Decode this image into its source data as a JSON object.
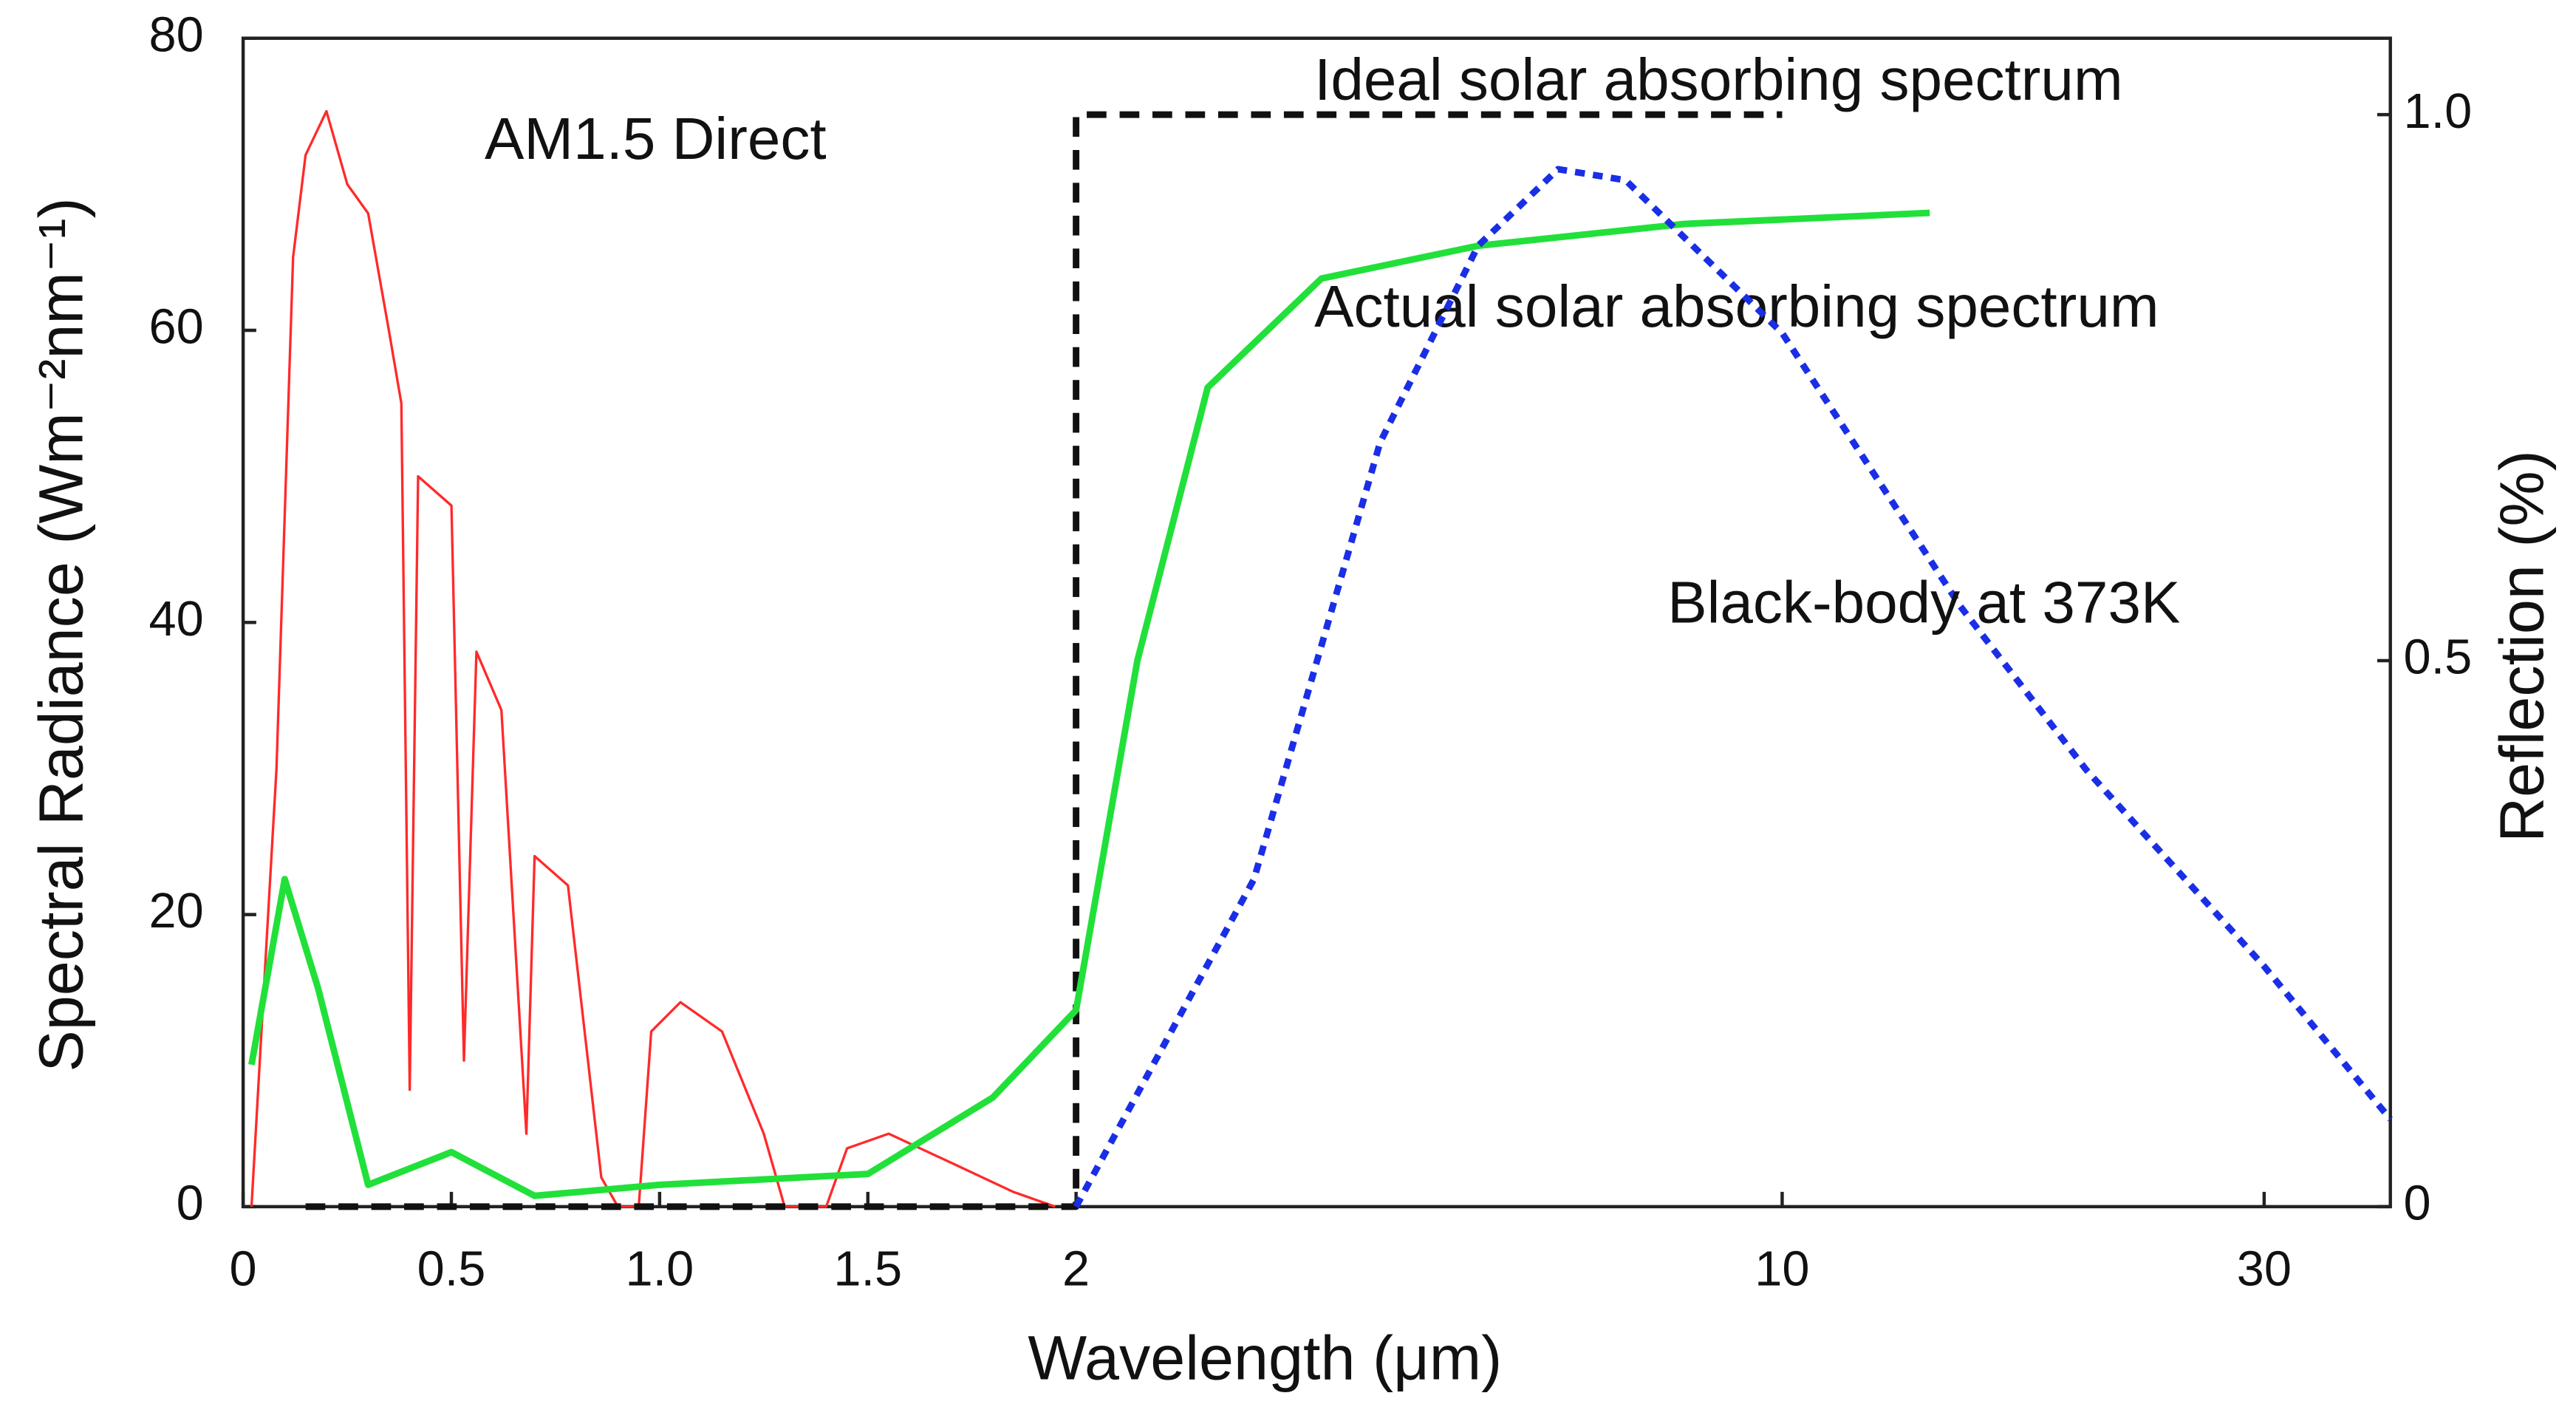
{
  "chart_data": {
    "type": "line",
    "xlabel": "Wavelength (μm)",
    "ylabel": "Spectral Radiance  (Wm⁻²nm⁻¹)",
    "y2label": "Reflection (%)",
    "xscale": "linear-then-log",
    "xbreak": 2,
    "xlim": [
      0,
      40
    ],
    "xticks": [
      0,
      0.5,
      {
        "value": 1,
        "label": "1.0"
      },
      1.5,
      2,
      10,
      30
    ],
    "ylim": [
      0,
      80
    ],
    "yticks": [
      0,
      20,
      40,
      60,
      80
    ],
    "y2lim": [
      0,
      1.07
    ],
    "y2ticks": [
      0,
      0.5,
      {
        "value": 1,
        "label": "1.0"
      }
    ],
    "series": [
      {
        "name": "AM1.5 Direct",
        "color": "#ff2a2a",
        "style": "solid",
        "x": [
          0.02,
          0.06,
          0.08,
          0.12,
          0.15,
          0.2,
          0.25,
          0.3,
          0.35,
          0.38,
          0.4,
          0.42,
          0.5,
          0.53,
          0.56,
          0.62,
          0.68,
          0.7,
          0.78,
          0.86,
          0.9,
          0.95,
          0.98,
          1.05,
          1.15,
          1.25,
          1.3,
          1.4,
          1.45,
          1.55,
          1.7,
          1.85,
          1.95
        ],
        "values": [
          0,
          20,
          30,
          65,
          72,
          75,
          70,
          68,
          60,
          55,
          8,
          50,
          48,
          10,
          38,
          34,
          5,
          24,
          22,
          2,
          0,
          0,
          12,
          14,
          12,
          5,
          0,
          0,
          4,
          5,
          3,
          1,
          0
        ]
      },
      {
        "name": "Ideal solar  absorbing  spectrum",
        "color": "#111111",
        "style": "dashed",
        "axis": "y2",
        "x": [
          0.15,
          2,
          2,
          10
        ],
        "values": [
          0,
          0,
          1,
          1
        ]
      },
      {
        "name": "Actual solar absorbing spectrum",
        "color": "#22e03a",
        "style": "solid",
        "axis": "y2",
        "x": [
          0.02,
          0.1,
          0.18,
          0.3,
          0.5,
          0.7,
          1.0,
          1.5,
          1.8,
          2,
          2.3,
          2.7,
          3.5,
          5,
          8,
          14
        ],
        "values": [
          0.13,
          0.3,
          0.2,
          0.02,
          0.05,
          0.01,
          0.02,
          0.03,
          0.1,
          0.18,
          0.5,
          0.75,
          0.85,
          0.88,
          0.9,
          0.91
        ]
      },
      {
        "name": "Black-body at 373K",
        "color": "#1a2ee6",
        "style": "dotted",
        "axis": "y2",
        "x": [
          2,
          3,
          4,
          5,
          6,
          7,
          10,
          15,
          20,
          30,
          40
        ],
        "values": [
          0,
          0.3,
          0.7,
          0.88,
          0.95,
          0.94,
          0.8,
          0.55,
          0.4,
          0.22,
          0.08
        ]
      }
    ]
  }
}
